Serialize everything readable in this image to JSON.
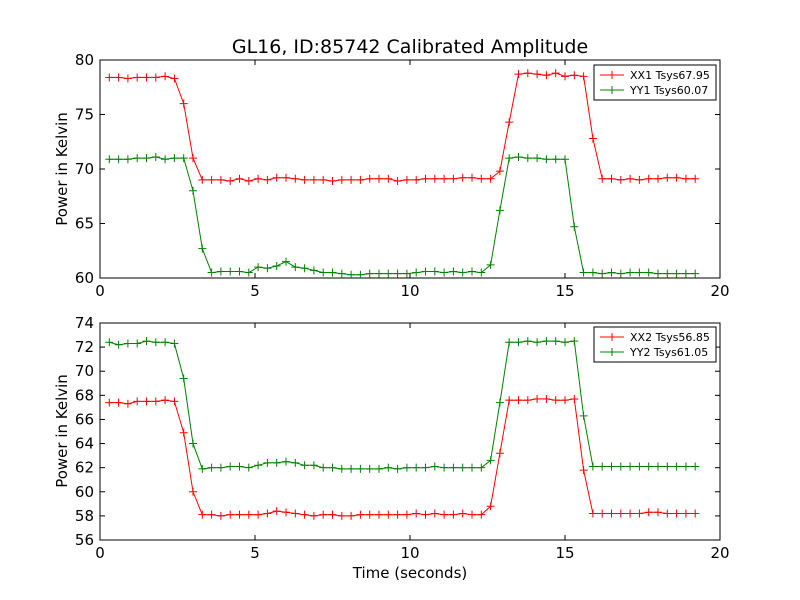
{
  "figure": {
    "title": "GL16, ID:85742 Calibrated Amplitude",
    "xlabel": "Time (seconds)"
  },
  "chart_data": [
    {
      "type": "line",
      "title": "GL16, ID:85742 Calibrated Amplitude",
      "xlabel": "",
      "ylabel": "Power in Kelvin",
      "xlim": [
        0,
        20
      ],
      "ylim": [
        60,
        80
      ],
      "xticks": [
        "0",
        "5",
        "10",
        "15",
        "20"
      ],
      "yticks": [
        "60",
        "65",
        "70",
        "75",
        "80"
      ],
      "legend_position": "top-right",
      "grid": false,
      "x": [
        0.3,
        0.6,
        0.9,
        1.2,
        1.5,
        1.8,
        2.1,
        2.4,
        2.7,
        3.0,
        3.3,
        3.6,
        3.9,
        4.2,
        4.5,
        4.8,
        5.1,
        5.4,
        5.7,
        6.0,
        6.3,
        6.6,
        6.9,
        7.2,
        7.5,
        7.8,
        8.1,
        8.4,
        8.7,
        9.0,
        9.3,
        9.6,
        9.9,
        10.2,
        10.5,
        10.8,
        11.1,
        11.4,
        11.7,
        12.0,
        12.3,
        12.6,
        12.9,
        13.2,
        13.5,
        13.8,
        14.1,
        14.4,
        14.7,
        15.0,
        15.3,
        15.6,
        15.9,
        16.2,
        16.5,
        16.8,
        17.1,
        17.4,
        17.7,
        18.0,
        18.3,
        18.6,
        18.9,
        19.2
      ],
      "series": [
        {
          "name": "XX1 Tsys67.95",
          "color": "#ff0000",
          "values": [
            78.4,
            78.4,
            78.3,
            78.4,
            78.4,
            78.4,
            78.5,
            78.3,
            76.0,
            71.0,
            69.0,
            69.0,
            69.0,
            68.9,
            69.1,
            68.9,
            69.1,
            69.0,
            69.2,
            69.2,
            69.1,
            69.0,
            69.0,
            69.0,
            68.9,
            69.0,
            69.0,
            69.0,
            69.1,
            69.1,
            69.1,
            68.9,
            69.0,
            69.0,
            69.1,
            69.1,
            69.1,
            69.1,
            69.2,
            69.2,
            69.1,
            69.1,
            69.8,
            74.3,
            78.7,
            78.8,
            78.7,
            78.6,
            78.8,
            78.5,
            78.6,
            78.5,
            72.8,
            69.1,
            69.1,
            69.0,
            69.1,
            69.0,
            69.1,
            69.1,
            69.2,
            69.2,
            69.1,
            69.1
          ]
        },
        {
          "name": "YY1 Tsys60.07",
          "color": "#008000",
          "values": [
            70.9,
            70.9,
            70.9,
            71.0,
            71.0,
            71.1,
            70.9,
            71.0,
            71.0,
            68.0,
            62.7,
            60.5,
            60.6,
            60.6,
            60.6,
            60.5,
            61.0,
            60.9,
            61.1,
            61.5,
            61.0,
            60.9,
            60.7,
            60.5,
            60.5,
            60.4,
            60.3,
            60.3,
            60.4,
            60.4,
            60.4,
            60.4,
            60.4,
            60.5,
            60.6,
            60.6,
            60.5,
            60.6,
            60.5,
            60.6,
            60.5,
            61.2,
            66.2,
            71.0,
            71.1,
            71.0,
            71.0,
            70.9,
            70.9,
            70.9,
            64.7,
            60.5,
            60.5,
            60.4,
            60.5,
            60.4,
            60.5,
            60.5,
            60.5,
            60.4,
            60.4,
            60.4,
            60.4,
            60.4
          ]
        }
      ]
    },
    {
      "type": "line",
      "title": "",
      "xlabel": "Time (seconds)",
      "ylabel": "Power in Kelvin",
      "xlim": [
        0,
        20
      ],
      "ylim": [
        56,
        74
      ],
      "xticks": [
        "0",
        "5",
        "10",
        "15",
        "20"
      ],
      "yticks": [
        "56",
        "58",
        "60",
        "62",
        "64",
        "66",
        "68",
        "70",
        "72",
        "74"
      ],
      "legend_position": "top-right",
      "grid": false,
      "x": [
        0.3,
        0.6,
        0.9,
        1.2,
        1.5,
        1.8,
        2.1,
        2.4,
        2.7,
        3.0,
        3.3,
        3.6,
        3.9,
        4.2,
        4.5,
        4.8,
        5.1,
        5.4,
        5.7,
        6.0,
        6.3,
        6.6,
        6.9,
        7.2,
        7.5,
        7.8,
        8.1,
        8.4,
        8.7,
        9.0,
        9.3,
        9.6,
        9.9,
        10.2,
        10.5,
        10.8,
        11.1,
        11.4,
        11.7,
        12.0,
        12.3,
        12.6,
        12.9,
        13.2,
        13.5,
        13.8,
        14.1,
        14.4,
        14.7,
        15.0,
        15.3,
        15.6,
        15.9,
        16.2,
        16.5,
        16.8,
        17.1,
        17.4,
        17.7,
        18.0,
        18.3,
        18.6,
        18.9,
        19.2
      ],
      "series": [
        {
          "name": "XX2 Tsys56.85",
          "color": "#ff0000",
          "values": [
            67.4,
            67.4,
            67.3,
            67.5,
            67.5,
            67.5,
            67.6,
            67.5,
            64.9,
            60.0,
            58.1,
            58.1,
            58.0,
            58.1,
            58.1,
            58.1,
            58.1,
            58.2,
            58.4,
            58.3,
            58.2,
            58.1,
            58.0,
            58.1,
            58.1,
            58.0,
            58.0,
            58.1,
            58.1,
            58.1,
            58.1,
            58.1,
            58.1,
            58.2,
            58.1,
            58.2,
            58.1,
            58.1,
            58.2,
            58.1,
            58.1,
            58.8,
            63.2,
            67.6,
            67.6,
            67.6,
            67.7,
            67.7,
            67.6,
            67.6,
            67.7,
            61.8,
            58.2,
            58.2,
            58.2,
            58.2,
            58.2,
            58.2,
            58.3,
            58.3,
            58.2,
            58.2,
            58.2,
            58.2
          ]
        },
        {
          "name": "YY2 Tsys61.05",
          "color": "#008000",
          "values": [
            72.4,
            72.2,
            72.3,
            72.3,
            72.5,
            72.4,
            72.4,
            72.3,
            69.4,
            64.0,
            61.9,
            62.0,
            62.0,
            62.1,
            62.1,
            62.0,
            62.2,
            62.4,
            62.4,
            62.5,
            62.4,
            62.2,
            62.2,
            62.0,
            62.0,
            61.9,
            61.9,
            61.9,
            61.9,
            61.9,
            62.0,
            61.9,
            62.0,
            62.0,
            62.0,
            62.1,
            62.0,
            62.0,
            62.0,
            62.0,
            62.0,
            62.6,
            67.4,
            72.4,
            72.4,
            72.5,
            72.4,
            72.5,
            72.5,
            72.4,
            72.5,
            66.3,
            62.1,
            62.1,
            62.1,
            62.1,
            62.1,
            62.1,
            62.1,
            62.1,
            62.1,
            62.1,
            62.1,
            62.1
          ]
        }
      ]
    }
  ]
}
